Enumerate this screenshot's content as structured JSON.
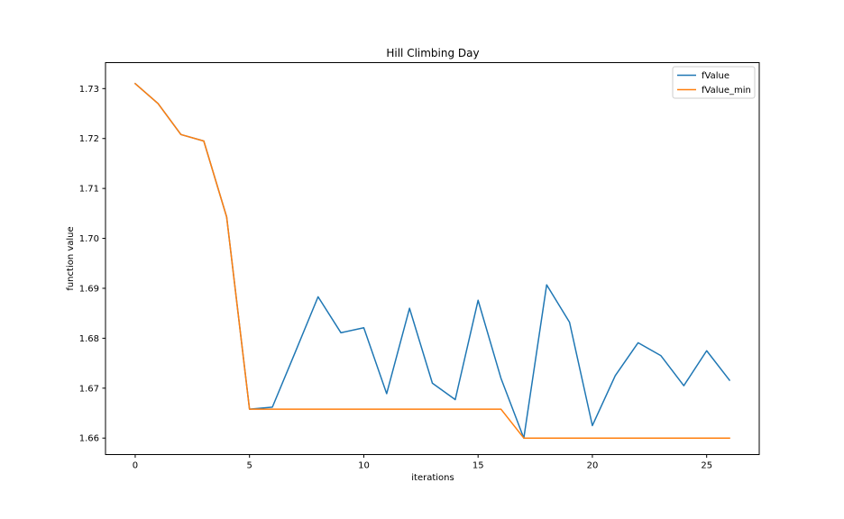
{
  "chart_data": {
    "type": "line",
    "title": "Hill Climbing Day",
    "xlabel": "iterations",
    "ylabel": "function value",
    "xlim": [
      -1.3,
      27.3
    ],
    "ylim": [
      1.6567,
      1.7352
    ],
    "xticks": [
      0,
      5,
      10,
      15,
      20,
      25
    ],
    "yticks": [
      1.66,
      1.67,
      1.68,
      1.69,
      1.7,
      1.71,
      1.72,
      1.73
    ],
    "ytick_labels": [
      "1.66",
      "1.67",
      "1.68",
      "1.69",
      "1.70",
      "1.71",
      "1.72",
      "1.73"
    ],
    "grid": false,
    "legend_position": "top-right",
    "x": [
      0,
      1,
      2,
      3,
      4,
      5,
      6,
      7,
      8,
      9,
      10,
      11,
      12,
      13,
      14,
      15,
      16,
      17,
      18,
      19,
      20,
      21,
      22,
      23,
      24,
      25,
      26
    ],
    "series": [
      {
        "name": "fValue",
        "color": "#1f77b4",
        "values": [
          1.731,
          1.727,
          1.7208,
          1.7195,
          1.7043,
          1.6658,
          1.6662,
          1.6772,
          1.6883,
          1.6811,
          1.6821,
          1.6689,
          1.686,
          1.671,
          1.6677,
          1.6876,
          1.672,
          1.66,
          1.6907,
          1.6832,
          1.6625,
          1.6725,
          1.6791,
          1.6765,
          1.6705,
          1.6775,
          1.6716
        ]
      },
      {
        "name": "fValue_min",
        "color": "#ff7f0e",
        "values": [
          1.731,
          1.727,
          1.7208,
          1.7195,
          1.7043,
          1.6658,
          1.6658,
          1.6658,
          1.6658,
          1.6658,
          1.6658,
          1.6658,
          1.6658,
          1.6658,
          1.6658,
          1.6658,
          1.6658,
          1.66,
          1.66,
          1.66,
          1.66,
          1.66,
          1.66,
          1.66,
          1.66,
          1.66,
          1.66
        ]
      }
    ]
  }
}
